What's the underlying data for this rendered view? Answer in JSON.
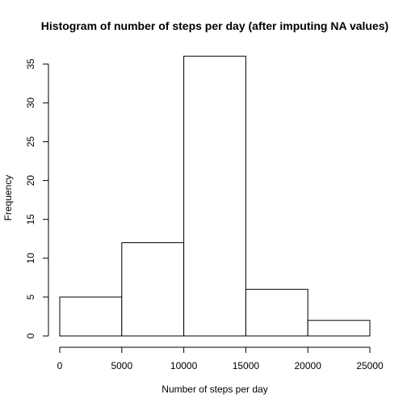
{
  "chart_data": {
    "type": "bar",
    "subtype": "histogram",
    "title": "Histogram of number of steps per day (after imputing NA values)",
    "xlabel": "Number of steps per day",
    "ylabel": "Frequency",
    "bins": [
      {
        "from": 0,
        "to": 5000,
        "count": 5
      },
      {
        "from": 5000,
        "to": 10000,
        "count": 12
      },
      {
        "from": 10000,
        "to": 15000,
        "count": 36
      },
      {
        "from": 15000,
        "to": 20000,
        "count": 6
      },
      {
        "from": 20000,
        "to": 25000,
        "count": 2
      }
    ],
    "xlim": [
      0,
      25000
    ],
    "ylim": [
      0,
      37
    ],
    "xticks": [
      0,
      5000,
      10000,
      15000,
      20000,
      25000
    ],
    "yticks": [
      0,
      5,
      10,
      15,
      20,
      25,
      30,
      35
    ],
    "grid": false,
    "legend": "none",
    "bar_fill": "#ffffff",
    "bar_stroke": "#000000"
  }
}
